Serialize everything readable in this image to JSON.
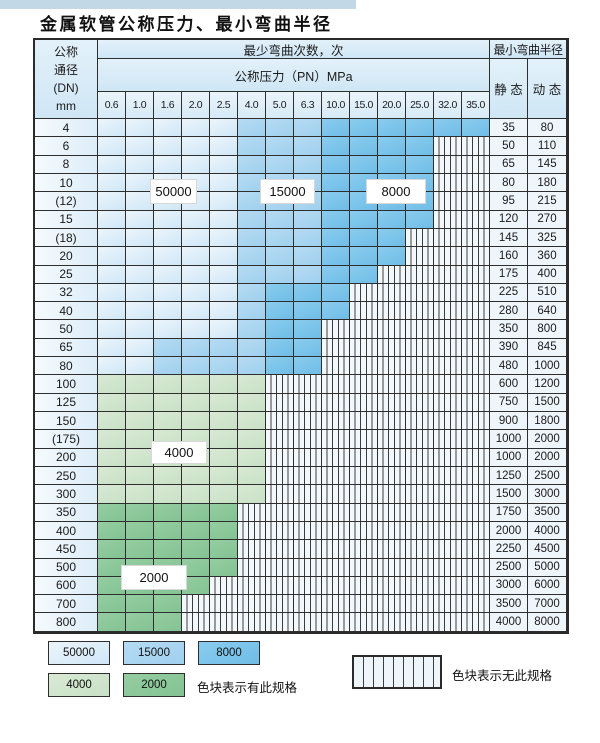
{
  "title": "金属软管公称压力、最小弯曲半径",
  "table": {
    "dn_header_lines": [
      "公称",
      "通径",
      "(DN)",
      "mm"
    ],
    "bend_times_header": "最少弯曲次数，次",
    "pressure_header": "公称压力（PN）MPa",
    "pressure_columns": [
      "0.6",
      "1.0",
      "1.6",
      "2.0",
      "2.5",
      "4.0",
      "5.0",
      "6.3",
      "10.0",
      "15.0",
      "20.0",
      "25.0",
      "32.0",
      "35.0"
    ],
    "radius_header": "最小弯曲半径",
    "static_header": "静 态",
    "dynamic_header": "动 态"
  },
  "zones": {
    "A": {
      "label": "50000",
      "color": "#d9ecf9"
    },
    "B": {
      "label": "15000",
      "color": "#a6d3f0"
    },
    "C": {
      "label": "8000",
      "color": "#7cc4ec"
    },
    "D": {
      "label": "4000",
      "color": "#cfe5cd"
    },
    "E": {
      "label": "2000",
      "color": "#8dc89b"
    },
    "X": {
      "label": "无此规格",
      "color": "hatched"
    }
  },
  "value_labels": {
    "b50000": "50000",
    "b15000": "15000",
    "b8000": "8000",
    "g4000": "4000",
    "g2000": "2000"
  },
  "rows": [
    {
      "dn": "4",
      "cells": "AAAAABBBCCCCCC",
      "static": "35",
      "dynamic": "80"
    },
    {
      "dn": "6",
      "cells": "AAAAABBBCCCCXX",
      "static": "50",
      "dynamic": "110"
    },
    {
      "dn": "8",
      "cells": "AAAAABBBCCCCXX",
      "static": "65",
      "dynamic": "145"
    },
    {
      "dn": "10",
      "cells": "AAAAABBBCCCCXX",
      "static": "80",
      "dynamic": "180"
    },
    {
      "dn": "(12)",
      "cells": "AAAAABBBCCCCXX",
      "static": "95",
      "dynamic": "215"
    },
    {
      "dn": "15",
      "cells": "AAAAABBBCCCCXX",
      "static": "120",
      "dynamic": "270"
    },
    {
      "dn": "(18)",
      "cells": "AAAAABBBCCCXXX",
      "static": "145",
      "dynamic": "325"
    },
    {
      "dn": "20",
      "cells": "AAAAABBBCCCXXX",
      "static": "160",
      "dynamic": "360"
    },
    {
      "dn": "25",
      "cells": "AAAAABBBCCXXXX",
      "static": "175",
      "dynamic": "400"
    },
    {
      "dn": "32",
      "cells": "AAAAABCCCXXXXX",
      "static": "225",
      "dynamic": "510"
    },
    {
      "dn": "40",
      "cells": "AAAAABCCCXXXXX",
      "static": "280",
      "dynamic": "640"
    },
    {
      "dn": "50",
      "cells": "AAAAABCCXXXXXX",
      "static": "350",
      "dynamic": "800"
    },
    {
      "dn": "65",
      "cells": "AABBBBCCXXXXXX",
      "static": "390",
      "dynamic": "845"
    },
    {
      "dn": "80",
      "cells": "AABBBBCCXXXXXX",
      "static": "480",
      "dynamic": "1000"
    },
    {
      "dn": "100",
      "cells": "DDDDDDXXXXXXXX",
      "static": "600",
      "dynamic": "1200"
    },
    {
      "dn": "125",
      "cells": "DDDDDDXXXXXXXX",
      "static": "750",
      "dynamic": "1500"
    },
    {
      "dn": "150",
      "cells": "DDDDDDXXXXXXXX",
      "static": "900",
      "dynamic": "1800"
    },
    {
      "dn": "(175)",
      "cells": "DDDDDDXXXXXXXX",
      "static": "1000",
      "dynamic": "2000"
    },
    {
      "dn": "200",
      "cells": "DDDDDDXXXXXXXX",
      "static": "1000",
      "dynamic": "2000"
    },
    {
      "dn": "250",
      "cells": "DDDDDDXXXXXXXX",
      "static": "1250",
      "dynamic": "2500"
    },
    {
      "dn": "300",
      "cells": "DDDDDDXXXXXXXX",
      "static": "1500",
      "dynamic": "3000"
    },
    {
      "dn": "350",
      "cells": "EEEEEXXXXXXXXX",
      "static": "1750",
      "dynamic": "3500"
    },
    {
      "dn": "400",
      "cells": "EEEEEXXXXXXXXX",
      "static": "2000",
      "dynamic": "4000"
    },
    {
      "dn": "450",
      "cells": "EEEEEXXXXXXXXX",
      "static": "2250",
      "dynamic": "4500"
    },
    {
      "dn": "500",
      "cells": "EEEEEXXXXXXXXX",
      "static": "2500",
      "dynamic": "5000"
    },
    {
      "dn": "600",
      "cells": "EEEEXXXXXXXXXX",
      "static": "3000",
      "dynamic": "6000"
    },
    {
      "dn": "700",
      "cells": "EEEXXXXXXXXXXX",
      "static": "3500",
      "dynamic": "7000"
    },
    {
      "dn": "800",
      "cells": "EEEXXXXXXXXXXX",
      "static": "4000",
      "dynamic": "8000"
    }
  ],
  "legend": {
    "items": [
      {
        "zone": "A",
        "label": "50000"
      },
      {
        "zone": "B",
        "label": "15000"
      },
      {
        "zone": "C",
        "label": "8000"
      },
      {
        "zone": "D",
        "label": "4000"
      },
      {
        "zone": "E",
        "label": "2000"
      }
    ],
    "has_spec_text": "色块表示有此规格",
    "no_spec_text": "色块表示无此规格"
  },
  "chart_data": {
    "type": "heatmap",
    "title": "金属软管公称压力、最小弯曲半径",
    "x_label": "公称压力 (PN) MPa",
    "y_label": "公称通径 (DN) mm",
    "columns_mpa": [
      0.6,
      1.0,
      1.6,
      2.0,
      2.5,
      4.0,
      5.0,
      6.3,
      10.0,
      15.0,
      20.0,
      25.0,
      32.0,
      35.0
    ],
    "rows_dn": [
      "4",
      "6",
      "8",
      "10",
      "(12)",
      "15",
      "(18)",
      "20",
      "25",
      "32",
      "40",
      "50",
      "65",
      "80",
      "100",
      "125",
      "150",
      "(175)",
      "200",
      "250",
      "300",
      "350",
      "400",
      "450",
      "500",
      "600",
      "700",
      "800"
    ],
    "zone_values_bend_cycles": {
      "A": 50000,
      "B": 15000,
      "C": 8000,
      "D": 4000,
      "E": 2000,
      "X": null
    },
    "matrix_zones": [
      "AAAAABBBCCCCCC",
      "AAAAABBBCCCCXX",
      "AAAAABBBCCCCXX",
      "AAAAABBBCCCCXX",
      "AAAAABBBCCCCXX",
      "AAAAABBBCCCCXX",
      "AAAAABBBCCCXXX",
      "AAAAABBBCCCXXX",
      "AAAAABBBCCXXXX",
      "AAAAABCCCXXXXX",
      "AAAAABCCCXXXXX",
      "AAAAABCCXXXXXX",
      "AABBBBCCXXXXXX",
      "AABBBBCCXXXXXX",
      "DDDDDDXXXXXXXX",
      "DDDDDDXXXXXXXX",
      "DDDDDDXXXXXXXX",
      "DDDDDDXXXXXXXX",
      "DDDDDDXXXXXXXX",
      "DDDDDDXXXXXXXX",
      "DDDDDDXXXXXXXX",
      "EEEEEXXXXXXXXX",
      "EEEEEXXXXXXXXX",
      "EEEEEXXXXXXXXX",
      "EEEEEXXXXXXXXX",
      "EEEEXXXXXXXXXX",
      "EEEXXXXXXXXXXX",
      "EEEXXXXXXXXXXX"
    ],
    "min_bend_radius_static": [
      35,
      50,
      65,
      80,
      95,
      120,
      145,
      160,
      175,
      225,
      280,
      350,
      390,
      480,
      600,
      750,
      900,
      1000,
      1000,
      1250,
      1500,
      1750,
      2000,
      2250,
      2500,
      3000,
      3500,
      4000
    ],
    "min_bend_radius_dynamic": [
      80,
      110,
      145,
      180,
      215,
      270,
      325,
      360,
      400,
      510,
      640,
      800,
      845,
      1000,
      1200,
      1500,
      1800,
      2000,
      2000,
      2500,
      3000,
      3500,
      4000,
      4500,
      5000,
      6000,
      7000,
      8000
    ],
    "legend_position": "bottom"
  }
}
